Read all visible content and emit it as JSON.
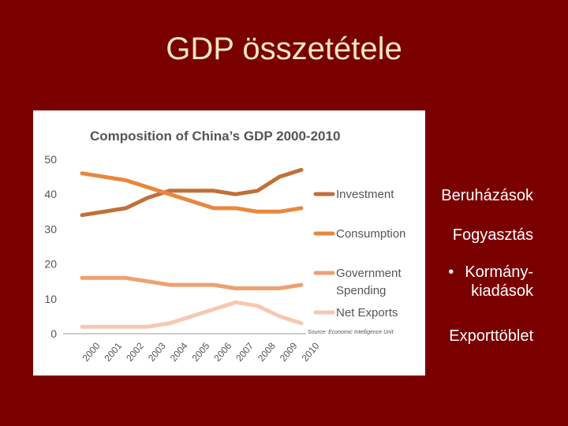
{
  "slide": {
    "title": "GDP összetétele",
    "labels": {
      "investment": "Beruházások",
      "consumption": "Fogyasztás",
      "government_bullet": "•",
      "government_line1": "Kormány-",
      "government_line2": "kiadások",
      "net_exports": "Exporttöblet"
    }
  },
  "chart_data": {
    "type": "line",
    "title": "Composition of China’s GDP 2000-2010",
    "x": [
      "2000",
      "2001",
      "2002",
      "2003",
      "2004",
      "2005",
      "2006",
      "2007",
      "2008",
      "2009",
      "2010"
    ],
    "ylim": [
      0,
      50
    ],
    "yticks": [
      "0",
      "10",
      "20",
      "30",
      "40",
      "50"
    ],
    "legend_position": "right",
    "source": "Source: Economic Intelligence Unit",
    "series": [
      {
        "name": "Investment",
        "color": "#c0703a",
        "values": [
          34,
          35,
          36,
          39,
          41,
          41,
          41,
          40,
          41,
          45,
          47
        ]
      },
      {
        "name": "Consumption",
        "color": "#e8883e",
        "values": [
          46,
          45,
          44,
          42,
          40,
          38,
          36,
          36,
          35,
          35,
          36
        ]
      },
      {
        "name": "Government Spending",
        "color": "#efa070",
        "values": [
          16,
          16,
          16,
          15,
          14,
          14,
          14,
          13,
          13,
          13,
          14
        ]
      },
      {
        "name": "Net Exports",
        "color": "#f6c8b2",
        "values": [
          2,
          2,
          2,
          2,
          3,
          5,
          7,
          9,
          8,
          5,
          3
        ]
      }
    ]
  }
}
